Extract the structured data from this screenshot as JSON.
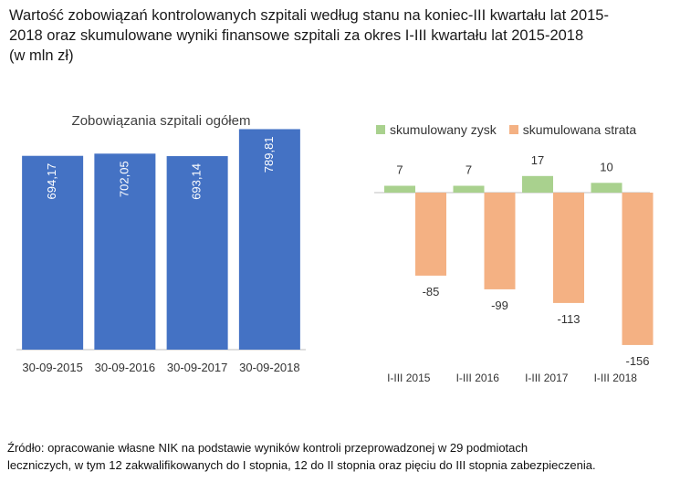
{
  "title": {
    "line1": "Wartość zobowiązań kontrolowanych szpitali według stanu na koniec-III kwartału lat 2015-",
    "line2": "2018 oraz skumulowane wyniki finansowe szpitali za okres I-III kwartału lat 2015-2018",
    "line3": "(w mln zł)"
  },
  "colors": {
    "blue": "#4472c4",
    "green": "#a9d18e",
    "orange": "#f4b183",
    "axis": "#bfbfbf"
  },
  "chart_data": [
    {
      "type": "bar",
      "title": "Zobowiązania szpitali ogółem",
      "categories": [
        "30-09-2015",
        "30-09-2016",
        "30-09-2017",
        "30-09-2018"
      ],
      "values": [
        694.17,
        702.05,
        693.14,
        789.81
      ],
      "value_labels": [
        "694,17",
        "702,05",
        "693,14",
        "789,81"
      ],
      "ylim": [
        0,
        860
      ],
      "grid": false
    },
    {
      "type": "bar",
      "title": "",
      "categories": [
        "I-III 2015",
        "I-III 2016",
        "I-III 2017",
        "I-III 2018"
      ],
      "series": [
        {
          "name": "skumulowany zysk",
          "values": [
            7,
            7,
            17,
            10
          ],
          "labels": [
            "7",
            "7",
            "17",
            "10"
          ]
        },
        {
          "name": "skumulowana strata",
          "values": [
            -85,
            -99,
            -113,
            -156
          ],
          "labels": [
            "-85",
            "-99",
            "-113",
            "-156"
          ]
        }
      ],
      "ylim": [
        -156,
        17
      ],
      "legend": "top",
      "grid": false
    }
  ],
  "source": {
    "line1": "Źródło: opracowanie własne NIK na podstawie wyników kontroli przeprowadzonej  w 29 podmiotach",
    "line2": "leczniczych, w tym 12 zakwalifikowanych do I stopnia, 12 do II stopnia oraz pięciu do III stopnia zabezpieczenia."
  }
}
